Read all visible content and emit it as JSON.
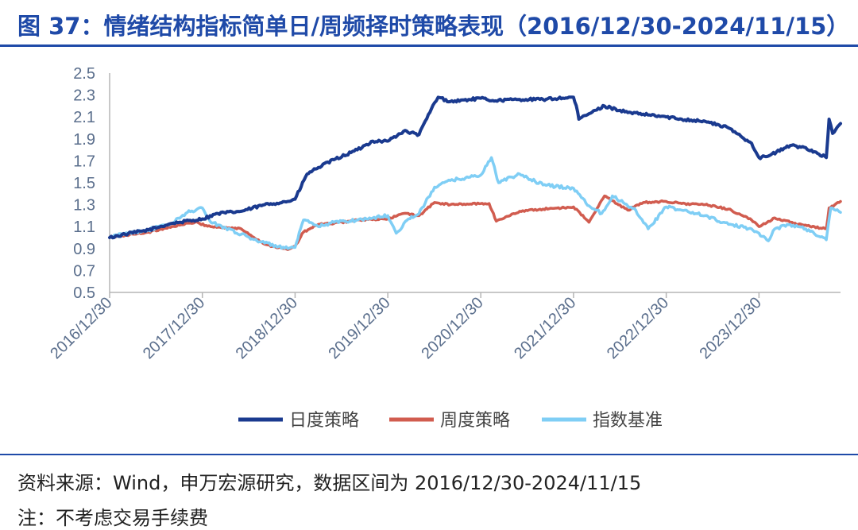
{
  "header": {
    "title": "图 37：情绪结构指标简单日/周频择时策略表现（2016/12/30-2024/11/15）"
  },
  "footer": {
    "source": "资料来源：Wind，申万宏源研究，数据区间为 2016/12/30-2024/11/15",
    "note": "注：不考虑交易手续费"
  },
  "colors": {
    "accent": "#1f4aa8",
    "daily": "#1a3a8f",
    "weekly": "#d15c4f",
    "index": "#7fcef5"
  },
  "chart_data": {
    "type": "line",
    "title": "情绪结构指标简单日/周频择时策略表现（2016/12/30-2024/11/15）",
    "xlabel": "",
    "ylabel": "",
    "ylim": [
      0.5,
      2.5
    ],
    "xlim": [
      "2016-12-30",
      "2024-11-15"
    ],
    "yticks": [
      "0.5",
      "0.7",
      "0.9",
      "1.1",
      "1.3",
      "1.5",
      "1.7",
      "1.9",
      "2.1",
      "2.3",
      "2.5"
    ],
    "xticks": [
      "2016/12/30",
      "2017/12/30",
      "2018/12/30",
      "2019/12/30",
      "2020/12/30",
      "2021/12/30",
      "2022/12/30",
      "2023/12/30"
    ],
    "grid": false,
    "legend": "bottom",
    "series": [
      {
        "name": "日度策略",
        "color": "#1a3a8f",
        "x": [
          "2016-12-30",
          "2017-03-01",
          "2017-06-01",
          "2017-09-01",
          "2017-12-30",
          "2018-03-01",
          "2018-06-01",
          "2018-09-01",
          "2018-12-01",
          "2018-12-30",
          "2019-02-15",
          "2019-04-01",
          "2019-06-01",
          "2019-09-01",
          "2019-11-01",
          "2019-12-30",
          "2020-03-01",
          "2020-05-01",
          "2020-07-01",
          "2020-07-15",
          "2020-09-01",
          "2020-12-30",
          "2021-02-15",
          "2021-06-01",
          "2021-09-01",
          "2021-12-30",
          "2022-01-15",
          "2022-01-20",
          "2022-03-01",
          "2022-05-01",
          "2022-08-01",
          "2022-12-30",
          "2023-03-01",
          "2023-06-01",
          "2023-09-01",
          "2023-12-01",
          "2023-12-30",
          "2024-02-01",
          "2024-05-01",
          "2024-07-01",
          "2024-09-20",
          "2024-10-01",
          "2024-10-15",
          "2024-11-15"
        ],
        "values": [
          1.0,
          1.03,
          1.07,
          1.13,
          1.17,
          1.22,
          1.24,
          1.3,
          1.33,
          1.35,
          1.58,
          1.64,
          1.71,
          1.8,
          1.88,
          1.88,
          1.97,
          1.94,
          2.23,
          2.28,
          2.24,
          2.27,
          2.25,
          2.26,
          2.26,
          2.28,
          2.15,
          2.08,
          2.13,
          2.2,
          2.14,
          2.1,
          2.08,
          2.06,
          2.0,
          1.86,
          1.73,
          1.74,
          1.84,
          1.82,
          1.73,
          2.08,
          1.95,
          2.04
        ]
      },
      {
        "name": "周度策略",
        "color": "#d15c4f",
        "x": [
          "2016-12-30",
          "2017-03-01",
          "2017-06-01",
          "2017-09-01",
          "2017-12-01",
          "2018-02-01",
          "2018-06-01",
          "2018-09-01",
          "2018-12-01",
          "2018-12-30",
          "2019-02-01",
          "2019-04-01",
          "2019-06-01",
          "2019-09-01",
          "2019-12-30",
          "2020-03-01",
          "2020-05-01",
          "2020-07-01",
          "2020-09-01",
          "2020-12-30",
          "2021-02-01",
          "2021-03-01",
          "2021-06-01",
          "2021-09-01",
          "2021-12-30",
          "2022-03-01",
          "2022-05-01",
          "2022-08-01",
          "2022-10-01",
          "2022-12-30",
          "2023-03-01",
          "2023-06-01",
          "2023-09-01",
          "2023-12-01",
          "2023-12-30",
          "2024-03-01",
          "2024-06-01",
          "2024-09-20",
          "2024-10-01",
          "2024-11-15"
        ],
        "values": [
          1.0,
          1.02,
          1.05,
          1.1,
          1.14,
          1.1,
          1.08,
          0.94,
          0.89,
          0.92,
          1.05,
          1.12,
          1.13,
          1.16,
          1.17,
          1.22,
          1.2,
          1.32,
          1.3,
          1.31,
          1.31,
          1.15,
          1.24,
          1.26,
          1.28,
          1.14,
          1.38,
          1.25,
          1.32,
          1.33,
          1.31,
          1.3,
          1.26,
          1.16,
          1.1,
          1.18,
          1.12,
          1.08,
          1.27,
          1.33
        ]
      },
      {
        "name": "指数基准",
        "color": "#7fcef5",
        "x": [
          "2016-12-30",
          "2017-03-01",
          "2017-06-01",
          "2017-09-01",
          "2017-11-01",
          "2017-12-30",
          "2018-02-01",
          "2018-04-01",
          "2018-06-01",
          "2018-09-01",
          "2018-12-01",
          "2018-12-30",
          "2019-02-01",
          "2019-04-01",
          "2019-06-01",
          "2019-09-01",
          "2019-12-30",
          "2020-02-01",
          "2020-03-20",
          "2020-05-01",
          "2020-07-01",
          "2020-09-01",
          "2020-12-30",
          "2021-02-10",
          "2021-03-10",
          "2021-06-01",
          "2021-09-01",
          "2021-12-30",
          "2022-03-01",
          "2022-04-20",
          "2022-06-01",
          "2022-09-01",
          "2022-10-20",
          "2022-12-30",
          "2023-03-01",
          "2023-06-01",
          "2023-09-01",
          "2023-12-01",
          "2023-12-30",
          "2024-02-05",
          "2024-03-01",
          "2024-05-01",
          "2024-07-01",
          "2024-09-20",
          "2024-10-08",
          "2024-11-15"
        ],
        "values": [
          1.0,
          1.04,
          1.07,
          1.13,
          1.23,
          1.27,
          1.14,
          1.09,
          1.03,
          0.95,
          0.9,
          0.91,
          1.16,
          1.1,
          1.14,
          1.16,
          1.2,
          1.04,
          1.17,
          1.22,
          1.46,
          1.52,
          1.57,
          1.73,
          1.5,
          1.58,
          1.48,
          1.45,
          1.29,
          1.22,
          1.38,
          1.25,
          1.08,
          1.28,
          1.25,
          1.2,
          1.12,
          1.08,
          1.04,
          0.97,
          1.08,
          1.12,
          1.08,
          0.98,
          1.27,
          1.23
        ]
      }
    ]
  }
}
